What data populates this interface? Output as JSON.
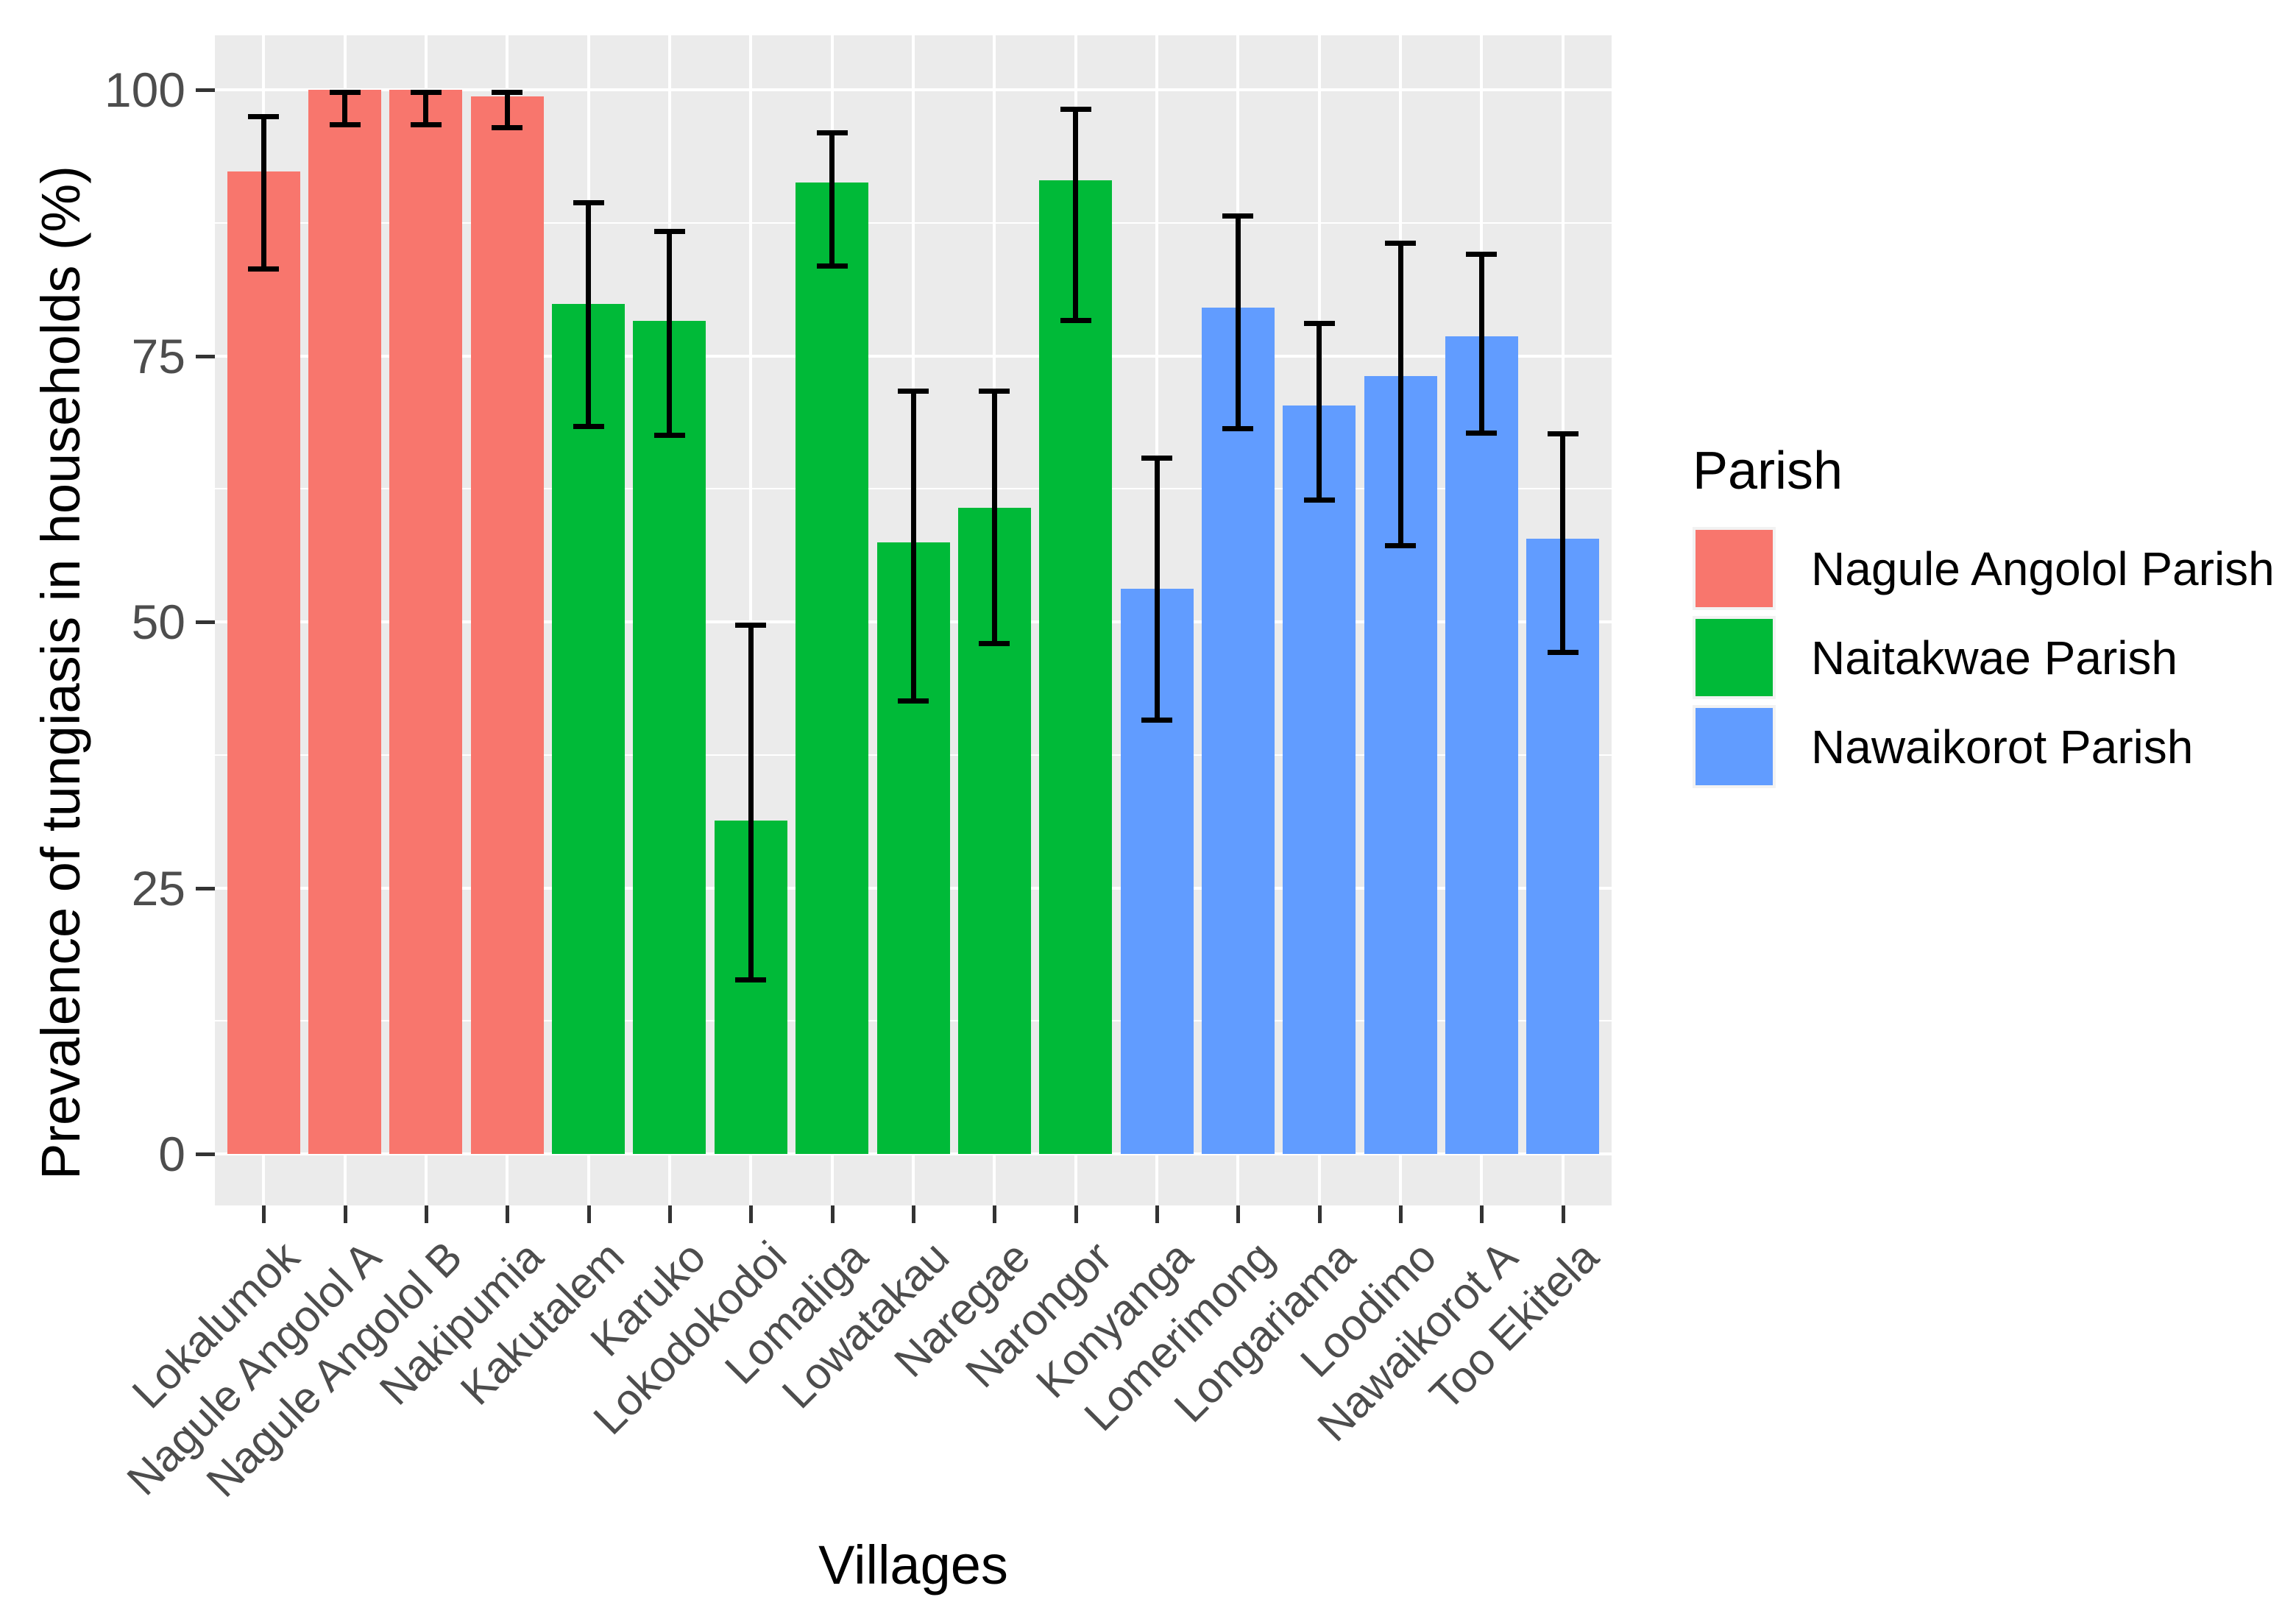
{
  "chart_data": {
    "type": "bar",
    "title": "",
    "xlabel": "Villages",
    "ylabel": "Prevalence of tungiasis in households (%)",
    "ylim": [
      0,
      100
    ],
    "y_ticks": [
      0,
      25,
      50,
      75,
      100
    ],
    "y_minor_gridlines": [
      12.5,
      37.5,
      62.5,
      87.5
    ],
    "grid": "white gridlines on gray panel",
    "legend_position": "right",
    "legend_title": "Parish",
    "panel_background": "#EBEBEB",
    "gridline_color": "#FFFFFF",
    "errorbar_color": "#000000",
    "tick_label_color": "#4D4D4D",
    "axis_title_color": "#000000",
    "parishes": [
      {
        "name": "Nagule Angolol Parish",
        "color": "#F8766D"
      },
      {
        "name": "Naitakwae Parish",
        "color": "#00BA38"
      },
      {
        "name": "Nawaikorot Parish",
        "color": "#619CFF"
      }
    ],
    "categories": [
      "Lokalumok",
      "Nagule Angolol A",
      "Nagule Angolol B",
      "Nakipumia",
      "Kakutalem",
      "Karuko",
      "Lokodokodoi",
      "Lomaliga",
      "Lowatakau",
      "Naregae",
      "Narongor",
      "Konyanga",
      "Lomerimong",
      "Longariama",
      "Loodimo",
      "Nawaikorot A",
      "Too Ekitela"
    ],
    "bars": [
      {
        "village": "Lokalumok",
        "parish": "Nagule Angolol Parish",
        "value": 92.3,
        "ci_low": 82.9,
        "ci_high": 97.7
      },
      {
        "village": "Nagule Angolol A",
        "parish": "Nagule Angolol Parish",
        "value": 100.0,
        "ci_low": 96.5,
        "ci_high": 100.0
      },
      {
        "village": "Nagule Angolol B",
        "parish": "Nagule Angolol Parish",
        "value": 100.0,
        "ci_low": 96.5,
        "ci_high": 100.0
      },
      {
        "village": "Nakipumia",
        "parish": "Nagule Angolol Parish",
        "value": 99.4,
        "ci_low": 96.2,
        "ci_high": 100.0
      },
      {
        "village": "Kakutalem",
        "parish": "Naitakwae Parish",
        "value": 79.9,
        "ci_low": 68.1,
        "ci_high": 89.6
      },
      {
        "village": "Karuko",
        "parish": "Naitakwae Parish",
        "value": 78.3,
        "ci_low": 67.3,
        "ci_high": 86.9
      },
      {
        "village": "Lokodokodoi",
        "parish": "Naitakwae Parish",
        "value": 31.3,
        "ci_low": 16.1,
        "ci_high": 49.9
      },
      {
        "village": "Lomaliga",
        "parish": "Naitakwae Parish",
        "value": 91.3,
        "ci_low": 83.2,
        "ci_high": 96.2
      },
      {
        "village": "Lowatakau",
        "parish": "Naitakwae Parish",
        "value": 57.5,
        "ci_low": 42.3,
        "ci_high": 71.9
      },
      {
        "village": "Naregae",
        "parish": "Naitakwae Parish",
        "value": 60.7,
        "ci_low": 47.7,
        "ci_high": 71.9
      },
      {
        "village": "Narongor",
        "parish": "Naitakwae Parish",
        "value": 91.5,
        "ci_low": 78.1,
        "ci_high": 98.4
      },
      {
        "village": "Konyanga",
        "parish": "Nawaikorot Parish",
        "value": 53.1,
        "ci_low": 40.5,
        "ci_high": 65.6
      },
      {
        "village": "Lomerimong",
        "parish": "Nawaikorot Parish",
        "value": 79.5,
        "ci_low": 67.9,
        "ci_high": 88.4
      },
      {
        "village": "Longariama",
        "parish": "Nawaikorot Parish",
        "value": 70.3,
        "ci_low": 61.2,
        "ci_high": 78.3
      },
      {
        "village": "Loodimo",
        "parish": "Nawaikorot Parish",
        "value": 73.1,
        "ci_low": 56.9,
        "ci_high": 85.8
      },
      {
        "village": "Nawaikorot A",
        "parish": "Nawaikorot Parish",
        "value": 76.8,
        "ci_low": 67.5,
        "ci_high": 84.8
      },
      {
        "village": "Too Ekitela",
        "parish": "Nawaikorot Parish",
        "value": 57.8,
        "ci_low": 46.9,
        "ci_high": 67.9
      }
    ]
  }
}
